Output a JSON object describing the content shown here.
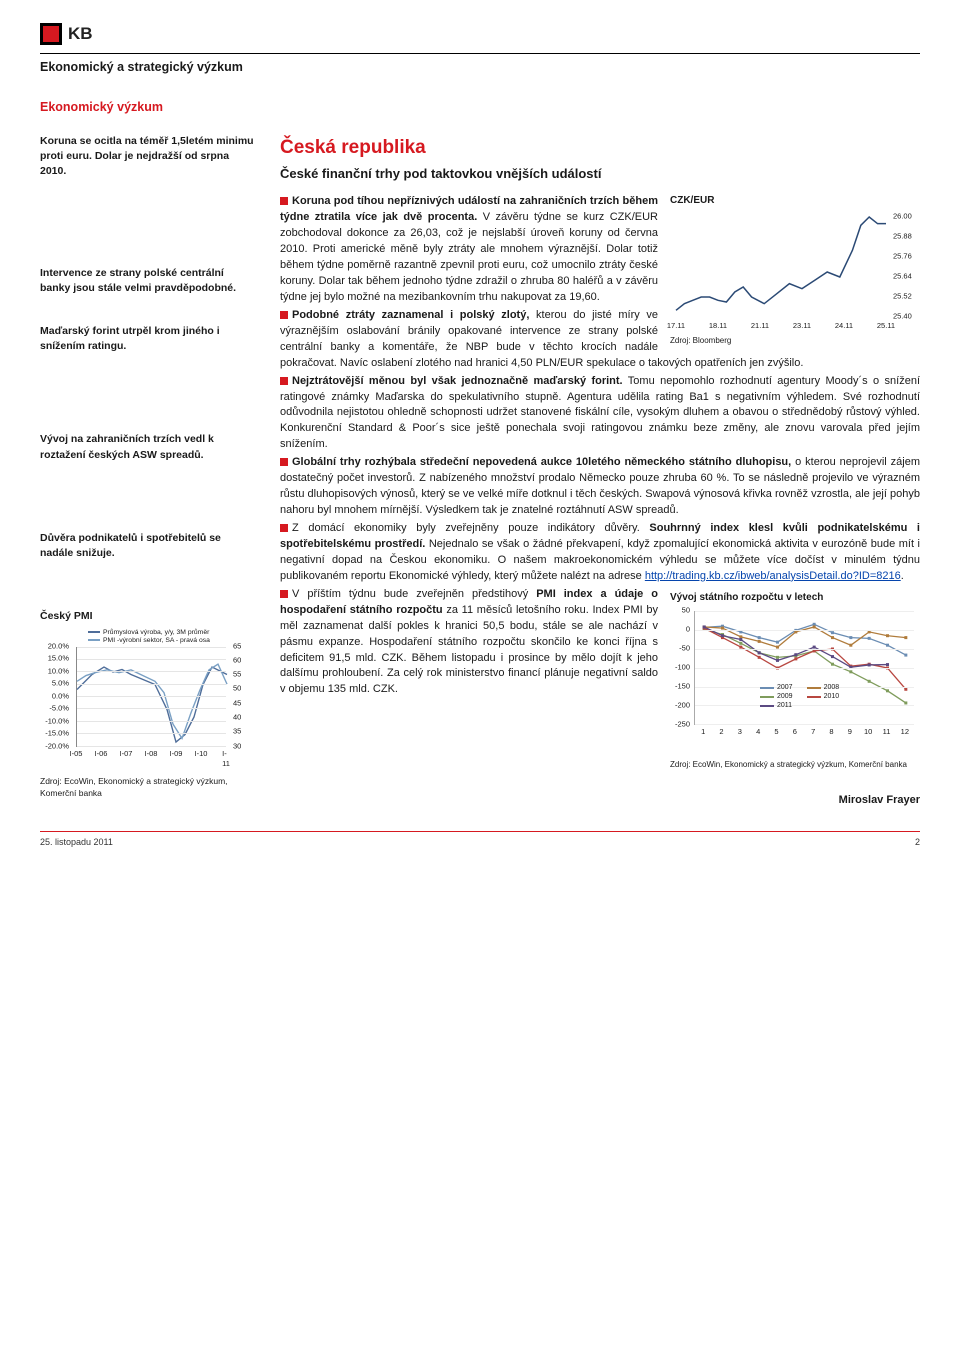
{
  "header": {
    "logo_text": "KB",
    "title": "Ekonomický a strategický výzkum",
    "sub_title": "Ekonomický výzkum"
  },
  "sidebar": {
    "blocks": [
      "Koruna se ocitla na téměř 1,5letém minimu proti euru. Dolar je nejdražší od srpna 2010.",
      "Intervence ze strany polské centrální banky jsou stále velmi pravděpodobné.",
      "Maďarský forint utrpěl krom jiného i snížením ratingu.",
      "Vývoj na zahraničních trzích vedl k roztažení českých ASW spreadů.",
      "Důvěra podnikatelů i spotřebitelů se nadále snižuje."
    ],
    "chart": {
      "title": "Český PMI",
      "type": "line-dual-axis",
      "legend": [
        {
          "label": "Průmyslová výroba, y/y, 3M průměr",
          "color": "#4f6d99"
        },
        {
          "label": "PMI -výrobní sektor, SA - pravá osa",
          "color": "#7aa0c4"
        }
      ],
      "y1_ticks": [
        "20.0%",
        "15.0%",
        "10.0%",
        "5.0%",
        "0.0%",
        "-5.0%",
        "-10.0%",
        "-15.0%",
        "-20.0%"
      ],
      "y1_lim": [
        -20,
        20
      ],
      "y2_ticks": [
        "65",
        "60",
        "55",
        "50",
        "45",
        "40",
        "35",
        "30"
      ],
      "y2_lim": [
        30,
        65
      ],
      "x_ticks": [
        "I-05",
        "I-06",
        "I-07",
        "I-08",
        "I-09",
        "I-10",
        "I-11"
      ],
      "series1_index": [
        0,
        5,
        10,
        18,
        24,
        30,
        36,
        44,
        52,
        60,
        66,
        72,
        78,
        84,
        90,
        100
      ],
      "series1_values": [
        3,
        6,
        9,
        12,
        10,
        11,
        9,
        7,
        5,
        -5,
        -18,
        -15,
        -8,
        5,
        12,
        9
      ],
      "series2_index": [
        0,
        6,
        12,
        20,
        28,
        36,
        44,
        52,
        58,
        64,
        70,
        76,
        82,
        88,
        94,
        100
      ],
      "series2_values": [
        53,
        55,
        56,
        57,
        56,
        57,
        55,
        53,
        49,
        38,
        33,
        42,
        50,
        57,
        59,
        52
      ],
      "colors": {
        "series1": "#4f6d99",
        "series2": "#7aa0c4",
        "grid": "#e5e5e5",
        "axis": "#888"
      },
      "source": "Zdroj: EcoWin, Ekonomický a strategický výzkum, Komerční banka"
    }
  },
  "main": {
    "title": "Česká republika",
    "subtitle": "České finanční trhy pod taktovkou vnějších událostí",
    "czk_chart": {
      "title": "CZK/EUR",
      "type": "line",
      "y_ticks": [
        "26.00",
        "25.88",
        "25.76",
        "25.64",
        "25.52",
        "25.40"
      ],
      "y_lim": [
        25.4,
        26.0
      ],
      "x_ticks": [
        "17.11",
        "18.11",
        "21.11",
        "23.11",
        "24.11",
        "25.11"
      ],
      "series_index": [
        0,
        4,
        8,
        12,
        16,
        20,
        24,
        28,
        32,
        36,
        42,
        48,
        54,
        60,
        66,
        72,
        78,
        84,
        88,
        92,
        96,
        100
      ],
      "series_values": [
        25.44,
        25.48,
        25.5,
        25.52,
        25.52,
        25.5,
        25.49,
        25.55,
        25.58,
        25.52,
        25.48,
        25.54,
        25.6,
        25.57,
        25.62,
        25.67,
        25.64,
        25.8,
        25.95,
        26.0,
        25.96,
        25.96
      ],
      "color": "#2b4a75",
      "source": "Zdroj: Bloomberg"
    },
    "p1_lead": "Koruna pod tíhou nepříznivých událostí na zahraničních trzích během týdne ztratila více jak dvě procenta.",
    "p1_rest": " V závěru týdne se kurz CZK/EUR zobchodoval dokonce za 26,03, což je nejslabší úroveň koruny od června 2010. Proti americké měně byly ztráty ale mnohem výraznější. Dolar totiž během týdne poměrně razantně zpevnil proti euru, což umocnilo ztráty české koruny. Dolar tak během jednoho týdne zdražil o zhruba 80 haléřů a v závěru týdne jej bylo možné na mezibankovním trhu nakupovat za 19,60.",
    "p2_lead": "Podobné ztráty zaznamenal i polský zlotý,",
    "p2_rest": " kterou do jisté míry ve výraznějším oslabování bránily opakované intervence ze strany polské centrální banky a komentáře, že NBP bude v těchto krocích nadále pokračovat. Navíc oslabení zlotého nad hranici 4,50 PLN/EUR spekulace o takových opatřeních jen zvýšilo.",
    "p3_lead": "Nejztrátovější měnou byl však jednoznačně maďarský forint.",
    "p3_rest": " Tomu nepomohlo rozhodnutí agentury Moody´s o snížení ratingové známky Maďarska do spekulativního stupně. Agentura udělila rating Ba1 s negativním výhledem. Své rozhodnutí odůvodnila nejistotou ohledně schopnosti udržet stanovené fiskální cíle, vysokým dluhem a obavou o střednědobý růstový výhled. Konkurenční Standard & Poor´s sice ještě ponechala svoji ratingovou známku beze změny, ale znovu varovala před jejím snížením.",
    "p4_lead": "Globální trhy rozhýbala středeční nepovedená aukce 10letého německého státního dluhopisu,",
    "p4_rest": " o kterou neprojevil zájem dostatečný počet investorů. Z nabízeného množství prodalo Německo pouze zhruba 60 %. To se následně projevilo ve výrazném růstu dluhopisových výnosů, který se ve velké míře dotknul i těch českých. Swapová výnosová křivka rovněž vzrostla, ale její pohyb nahoru byl mnohem mírnější. Výsledkem tak je znatelné roztáhnutí ASW spreadů.",
    "p5_a": "Z domácí ekonomiky byly zveřejněny pouze indikátory důvěry. ",
    "p5_lead": "Souhrnný index klesl kvůli podnikatelskému i spotřebitelskému prostředí.",
    "p5_rest": " Nejednalo se však o žádné překvapení, když zpomalující ekonomická aktivita v eurozóně bude mít i negativní dopad na Českou ekonomiku. O našem makroekonomickém výhledu se můžete více dočíst v minulém týdnu publikovaném reportu Ekonomické výhledy, který můžete nalézt na adrese ",
    "p5_link": "http://trading.kb.cz/ibweb/analysisDetail.do?ID=8216",
    "p6_a": "V příštím týdnu bude zveřejněn předstihový ",
    "p6_lead": "PMI index a údaje o hospodaření státního rozpočtu",
    "p6_rest": " za 11 měsíců letošního roku. Index PMI by měl zaznamenat další pokles k hranici 50,5 bodu, stále se ale nachází v pásmu expanze. Hospodaření státního rozpočtu skončilo ke konci října s deficitem 91,5 mld. CZK. Během listopadu i prosince by mělo dojít k jeho dalšímu prohloubení. Za celý rok ministerstvo financí plánuje negativní saldo v objemu 135 mld. CZK.",
    "budget_chart": {
      "title": "Vývoj státního rozpočtu v letech",
      "type": "line",
      "y_ticks": [
        "50",
        "0",
        "-50",
        "-100",
        "-150",
        "-200",
        "-250"
      ],
      "y_lim": [
        -250,
        50
      ],
      "x_ticks": [
        "1",
        "2",
        "3",
        "4",
        "5",
        "6",
        "7",
        "8",
        "9",
        "10",
        "11",
        "12"
      ],
      "series": [
        {
          "label": "2007",
          "color": "#6b8db3",
          "vals": [
            7,
            10,
            -5,
            -20,
            -32,
            -1,
            15,
            -7,
            -20,
            -22,
            -40,
            -66
          ]
        },
        {
          "label": "2008",
          "color": "#b07c3c",
          "vals": [
            8,
            5,
            -18,
            -30,
            -45,
            -5,
            8,
            -20,
            -40,
            -5,
            -15,
            -20
          ]
        },
        {
          "label": "2009",
          "color": "#7f9c5c",
          "vals": [
            2,
            -12,
            -35,
            -60,
            -72,
            -68,
            -55,
            -90,
            -110,
            -135,
            -160,
            -192
          ]
        },
        {
          "label": "2010",
          "color": "#b84740",
          "vals": [
            5,
            -20,
            -45,
            -72,
            -100,
            -76,
            -55,
            -50,
            -95,
            -90,
            -100,
            -156
          ]
        },
        {
          "label": "2011",
          "color": "#5b4a82",
          "vals": [
            8,
            -15,
            -25,
            -60,
            -80,
            -65,
            -45,
            -70,
            -98,
            -92,
            -91,
            null
          ]
        }
      ],
      "source": "Zdroj: EcoWin, Ekonomický a strategický výzkum, Komerční banka"
    },
    "author": "Miroslav Frayer"
  },
  "footer": {
    "date": "25. listopadu 2011",
    "page": "2"
  }
}
